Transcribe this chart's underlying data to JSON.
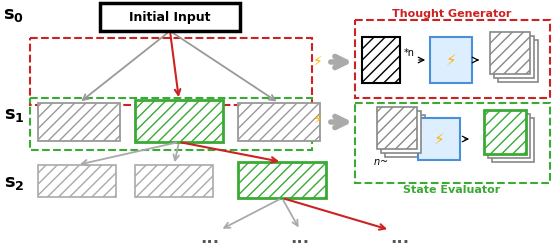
{
  "bg_color": "#ffffff",
  "s_labels": [
    "$\\mathbf{s_0}$",
    "$\\mathbf{s_1}$",
    "$\\mathbf{s_2}$"
  ],
  "thought_gen_label": "Thought Generator",
  "thought_gen_color": "#cc2222",
  "state_eval_label": "State Evaluator",
  "state_eval_color": "#3aaa35",
  "lightning_color": "#FFB300",
  "gray_arrow_color": "#999999",
  "red_arrow_color": "#cc2222",
  "blue_box_color": "#4a90d9",
  "blue_box_fill": "#ddeeff"
}
